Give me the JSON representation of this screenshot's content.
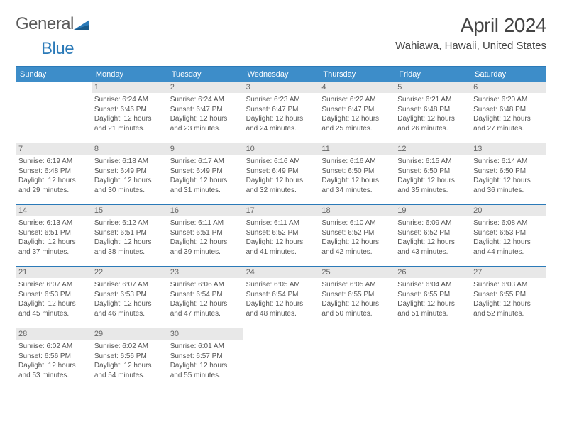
{
  "logo": {
    "word1": "General",
    "word2": "Blue"
  },
  "header": {
    "title": "April 2024",
    "location": "Wahiawa, Hawaii, United States"
  },
  "colors": {
    "accent": "#3d8dc9",
    "border": "#2b7ab8",
    "daynum_bg": "#e8e8e8",
    "text": "#555"
  },
  "weekdays": [
    "Sunday",
    "Monday",
    "Tuesday",
    "Wednesday",
    "Thursday",
    "Friday",
    "Saturday"
  ],
  "grid": {
    "cols": 7,
    "rows": 5,
    "start_col": 1,
    "num_days": 30
  },
  "days": [
    {
      "n": 1,
      "sunrise": "Sunrise: 6:24 AM",
      "sunset": "Sunset: 6:46 PM",
      "d1": "Daylight: 12 hours",
      "d2": "and 21 minutes."
    },
    {
      "n": 2,
      "sunrise": "Sunrise: 6:24 AM",
      "sunset": "Sunset: 6:47 PM",
      "d1": "Daylight: 12 hours",
      "d2": "and 23 minutes."
    },
    {
      "n": 3,
      "sunrise": "Sunrise: 6:23 AM",
      "sunset": "Sunset: 6:47 PM",
      "d1": "Daylight: 12 hours",
      "d2": "and 24 minutes."
    },
    {
      "n": 4,
      "sunrise": "Sunrise: 6:22 AM",
      "sunset": "Sunset: 6:47 PM",
      "d1": "Daylight: 12 hours",
      "d2": "and 25 minutes."
    },
    {
      "n": 5,
      "sunrise": "Sunrise: 6:21 AM",
      "sunset": "Sunset: 6:48 PM",
      "d1": "Daylight: 12 hours",
      "d2": "and 26 minutes."
    },
    {
      "n": 6,
      "sunrise": "Sunrise: 6:20 AM",
      "sunset": "Sunset: 6:48 PM",
      "d1": "Daylight: 12 hours",
      "d2": "and 27 minutes."
    },
    {
      "n": 7,
      "sunrise": "Sunrise: 6:19 AM",
      "sunset": "Sunset: 6:48 PM",
      "d1": "Daylight: 12 hours",
      "d2": "and 29 minutes."
    },
    {
      "n": 8,
      "sunrise": "Sunrise: 6:18 AM",
      "sunset": "Sunset: 6:49 PM",
      "d1": "Daylight: 12 hours",
      "d2": "and 30 minutes."
    },
    {
      "n": 9,
      "sunrise": "Sunrise: 6:17 AM",
      "sunset": "Sunset: 6:49 PM",
      "d1": "Daylight: 12 hours",
      "d2": "and 31 minutes."
    },
    {
      "n": 10,
      "sunrise": "Sunrise: 6:16 AM",
      "sunset": "Sunset: 6:49 PM",
      "d1": "Daylight: 12 hours",
      "d2": "and 32 minutes."
    },
    {
      "n": 11,
      "sunrise": "Sunrise: 6:16 AM",
      "sunset": "Sunset: 6:50 PM",
      "d1": "Daylight: 12 hours",
      "d2": "and 34 minutes."
    },
    {
      "n": 12,
      "sunrise": "Sunrise: 6:15 AM",
      "sunset": "Sunset: 6:50 PM",
      "d1": "Daylight: 12 hours",
      "d2": "and 35 minutes."
    },
    {
      "n": 13,
      "sunrise": "Sunrise: 6:14 AM",
      "sunset": "Sunset: 6:50 PM",
      "d1": "Daylight: 12 hours",
      "d2": "and 36 minutes."
    },
    {
      "n": 14,
      "sunrise": "Sunrise: 6:13 AM",
      "sunset": "Sunset: 6:51 PM",
      "d1": "Daylight: 12 hours",
      "d2": "and 37 minutes."
    },
    {
      "n": 15,
      "sunrise": "Sunrise: 6:12 AM",
      "sunset": "Sunset: 6:51 PM",
      "d1": "Daylight: 12 hours",
      "d2": "and 38 minutes."
    },
    {
      "n": 16,
      "sunrise": "Sunrise: 6:11 AM",
      "sunset": "Sunset: 6:51 PM",
      "d1": "Daylight: 12 hours",
      "d2": "and 39 minutes."
    },
    {
      "n": 17,
      "sunrise": "Sunrise: 6:11 AM",
      "sunset": "Sunset: 6:52 PM",
      "d1": "Daylight: 12 hours",
      "d2": "and 41 minutes."
    },
    {
      "n": 18,
      "sunrise": "Sunrise: 6:10 AM",
      "sunset": "Sunset: 6:52 PM",
      "d1": "Daylight: 12 hours",
      "d2": "and 42 minutes."
    },
    {
      "n": 19,
      "sunrise": "Sunrise: 6:09 AM",
      "sunset": "Sunset: 6:52 PM",
      "d1": "Daylight: 12 hours",
      "d2": "and 43 minutes."
    },
    {
      "n": 20,
      "sunrise": "Sunrise: 6:08 AM",
      "sunset": "Sunset: 6:53 PM",
      "d1": "Daylight: 12 hours",
      "d2": "and 44 minutes."
    },
    {
      "n": 21,
      "sunrise": "Sunrise: 6:07 AM",
      "sunset": "Sunset: 6:53 PM",
      "d1": "Daylight: 12 hours",
      "d2": "and 45 minutes."
    },
    {
      "n": 22,
      "sunrise": "Sunrise: 6:07 AM",
      "sunset": "Sunset: 6:53 PM",
      "d1": "Daylight: 12 hours",
      "d2": "and 46 minutes."
    },
    {
      "n": 23,
      "sunrise": "Sunrise: 6:06 AM",
      "sunset": "Sunset: 6:54 PM",
      "d1": "Daylight: 12 hours",
      "d2": "and 47 minutes."
    },
    {
      "n": 24,
      "sunrise": "Sunrise: 6:05 AM",
      "sunset": "Sunset: 6:54 PM",
      "d1": "Daylight: 12 hours",
      "d2": "and 48 minutes."
    },
    {
      "n": 25,
      "sunrise": "Sunrise: 6:05 AM",
      "sunset": "Sunset: 6:55 PM",
      "d1": "Daylight: 12 hours",
      "d2": "and 50 minutes."
    },
    {
      "n": 26,
      "sunrise": "Sunrise: 6:04 AM",
      "sunset": "Sunset: 6:55 PM",
      "d1": "Daylight: 12 hours",
      "d2": "and 51 minutes."
    },
    {
      "n": 27,
      "sunrise": "Sunrise: 6:03 AM",
      "sunset": "Sunset: 6:55 PM",
      "d1": "Daylight: 12 hours",
      "d2": "and 52 minutes."
    },
    {
      "n": 28,
      "sunrise": "Sunrise: 6:02 AM",
      "sunset": "Sunset: 6:56 PM",
      "d1": "Daylight: 12 hours",
      "d2": "and 53 minutes."
    },
    {
      "n": 29,
      "sunrise": "Sunrise: 6:02 AM",
      "sunset": "Sunset: 6:56 PM",
      "d1": "Daylight: 12 hours",
      "d2": "and 54 minutes."
    },
    {
      "n": 30,
      "sunrise": "Sunrise: 6:01 AM",
      "sunset": "Sunset: 6:57 PM",
      "d1": "Daylight: 12 hours",
      "d2": "and 55 minutes."
    }
  ]
}
